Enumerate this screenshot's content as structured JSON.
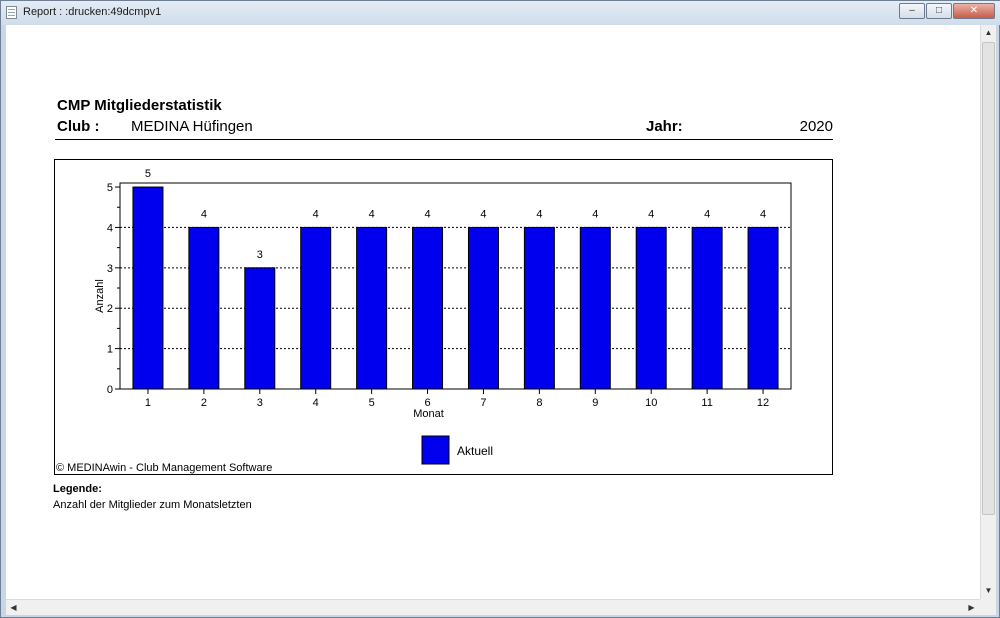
{
  "window": {
    "title": "Report : :drucken:49dcmpv1",
    "buttons": {
      "minimize": "–",
      "maximize": "□",
      "close": "✕"
    }
  },
  "report": {
    "title": "CMP Mitgliederstatistik",
    "club_label": "Club :",
    "club_value": "MEDINA Hüfingen",
    "year_label": "Jahr:",
    "year_value": "2020",
    "copyright": "© MEDINAwin - Club Management Software",
    "legend_title": "Legende:",
    "legend_text": "Anzahl der Mitglieder zum Monatsletzten"
  },
  "chart_data": {
    "type": "bar",
    "categories": [
      "1",
      "2",
      "3",
      "4",
      "5",
      "6",
      "7",
      "8",
      "9",
      "10",
      "11",
      "12"
    ],
    "series": [
      {
        "name": "Aktuell",
        "values": [
          5,
          4,
          3,
          4,
          4,
          4,
          4,
          4,
          4,
          4,
          4,
          4
        ],
        "color": "#0000ee"
      }
    ],
    "xlabel": "Monat",
    "ylabel": "Anzahl",
    "ylim": [
      0,
      5
    ],
    "yticks": [
      0,
      1,
      2,
      3,
      4,
      5
    ],
    "grid": true,
    "legend": "bottom"
  },
  "scrollbar_icons": {
    "up": "▲",
    "down": "▼",
    "left": "◀",
    "right": "▶"
  }
}
